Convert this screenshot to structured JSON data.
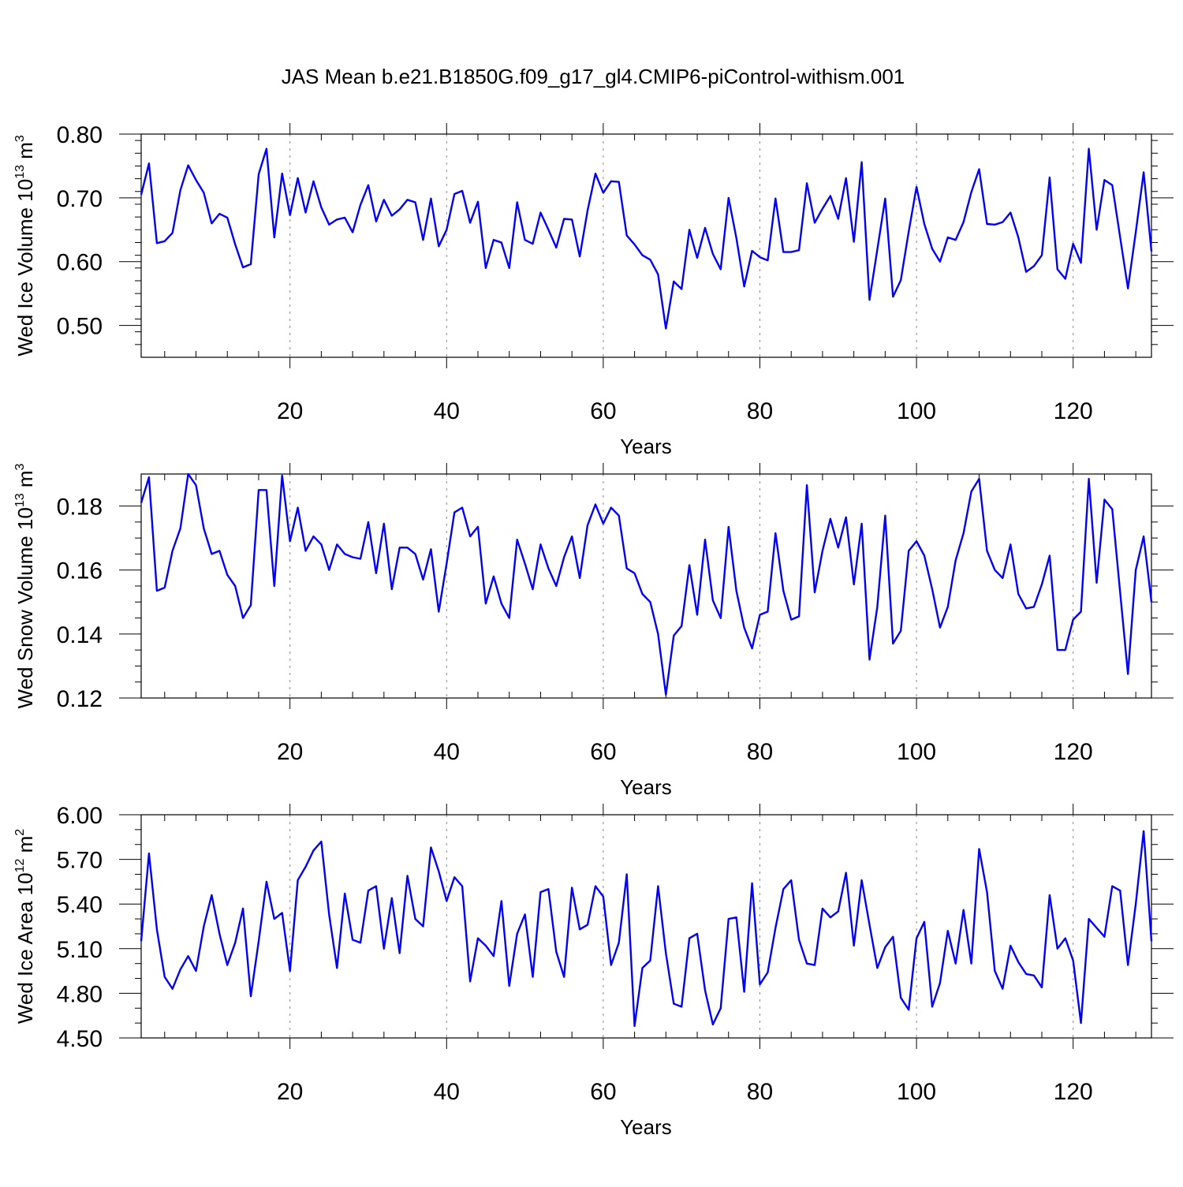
{
  "title": "JAS Mean b.e21.B1850G.f09_g17_gl4.CMIP6-piControl-withism.001",
  "colors": {
    "line": "#0000ff",
    "axes": "#000000",
    "grid": "#888888"
  },
  "chart_data": [
    {
      "type": "line",
      "ylabel": "Wed Ice Volume 10",
      "ylabel_exp": "13",
      "ylabel_unit": " m",
      "ylabel_unit_exp": "3",
      "xlabel": "Years",
      "xlim": [
        1,
        130
      ],
      "ylim": [
        0.45,
        0.8
      ],
      "yticks": [
        0.5,
        0.6,
        0.7,
        0.8
      ],
      "ytick_labels": [
        "0.50",
        "0.60",
        "0.70",
        "0.80"
      ],
      "yminor_step": 0.02,
      "xticks": [
        20,
        40,
        60,
        80,
        100,
        120
      ],
      "xtick_labels": [
        "20",
        "40",
        "60",
        "80",
        "100",
        "120"
      ],
      "xminor_step": 4,
      "grid": "dashed vertical at major x ticks",
      "series": [
        {
          "values": [
            0.705,
            0.754,
            0.629,
            0.632,
            0.645,
            0.712,
            0.751,
            0.728,
            0.708,
            0.66,
            0.675,
            0.669,
            0.627,
            0.591,
            0.596,
            0.737,
            0.777,
            0.638,
            0.738,
            0.673,
            0.731,
            0.677,
            0.726,
            0.685,
            0.658,
            0.666,
            0.669,
            0.646,
            0.689,
            0.72,
            0.663,
            0.697,
            0.672,
            0.682,
            0.697,
            0.693,
            0.634,
            0.699,
            0.624,
            0.65,
            0.706,
            0.711,
            0.661,
            0.694,
            0.59,
            0.634,
            0.63,
            0.59,
            0.693,
            0.634,
            0.628,
            0.677,
            0.65,
            0.622,
            0.667,
            0.666,
            0.608,
            0.68,
            0.738,
            0.708,
            0.726,
            0.725,
            0.641,
            0.627,
            0.61,
            0.603,
            0.58,
            0.495,
            0.569,
            0.557,
            0.65,
            0.606,
            0.653,
            0.612,
            0.588,
            0.7,
            0.637,
            0.561,
            0.617,
            0.607,
            0.602,
            0.699,
            0.615,
            0.615,
            0.618,
            0.723,
            0.661,
            0.683,
            0.703,
            0.667,
            0.731,
            0.631,
            0.756,
            0.54,
            0.619,
            0.699,
            0.545,
            0.571,
            0.647,
            0.717,
            0.659,
            0.62,
            0.6,
            0.638,
            0.634,
            0.662,
            0.709,
            0.745,
            0.659,
            0.658,
            0.662,
            0.677,
            0.638,
            0.584,
            0.593,
            0.61,
            0.732,
            0.588,
            0.573,
            0.628,
            0.598,
            0.777,
            0.65,
            0.728,
            0.72,
            0.638,
            0.558,
            0.646,
            0.74,
            0.616
          ]
        }
      ]
    },
    {
      "type": "line",
      "ylabel": "Wed Snow Volume 10",
      "ylabel_exp": "13",
      "ylabel_unit": " m",
      "ylabel_unit_exp": "3",
      "xlabel": "Years",
      "xlim": [
        1,
        130
      ],
      "ylim": [
        0.12,
        0.19
      ],
      "yticks": [
        0.12,
        0.14,
        0.16,
        0.18
      ],
      "ytick_labels": [
        "0.12",
        "0.14",
        "0.16",
        "0.18"
      ],
      "yminor_step": 0.005,
      "xticks": [
        20,
        40,
        60,
        80,
        100,
        120
      ],
      "xtick_labels": [
        "20",
        "40",
        "60",
        "80",
        "100",
        "120"
      ],
      "xminor_step": 4,
      "grid": "dashed vertical at major x ticks",
      "series": [
        {
          "values": [
            0.181,
            0.189,
            0.1535,
            0.1545,
            0.166,
            0.173,
            0.19,
            0.1865,
            0.173,
            0.165,
            0.166,
            0.1585,
            0.155,
            0.145,
            0.149,
            0.185,
            0.185,
            0.155,
            0.1895,
            0.169,
            0.1795,
            0.166,
            0.1705,
            0.168,
            0.16,
            0.168,
            0.165,
            0.164,
            0.1635,
            0.175,
            0.159,
            0.1745,
            0.154,
            0.167,
            0.167,
            0.165,
            0.157,
            0.1665,
            0.147,
            0.162,
            0.178,
            0.1795,
            0.1705,
            0.1735,
            0.1495,
            0.158,
            0.1495,
            0.145,
            0.1695,
            0.162,
            0.154,
            0.168,
            0.1605,
            0.155,
            0.164,
            0.1705,
            0.1575,
            0.174,
            0.1805,
            0.1745,
            0.1795,
            0.177,
            0.1605,
            0.159,
            0.1525,
            0.15,
            0.14,
            0.121,
            0.1395,
            0.1425,
            0.1615,
            0.146,
            0.1695,
            0.1505,
            0.145,
            0.1735,
            0.1535,
            0.142,
            0.1355,
            0.146,
            0.147,
            0.1715,
            0.1535,
            0.1445,
            0.1455,
            0.1865,
            0.153,
            0.166,
            0.176,
            0.167,
            0.1765,
            0.1555,
            0.1745,
            0.132,
            0.1485,
            0.177,
            0.137,
            0.141,
            0.166,
            0.169,
            0.1645,
            0.154,
            0.142,
            0.1485,
            0.163,
            0.1715,
            0.1845,
            0.1885,
            0.166,
            0.16,
            0.1575,
            0.168,
            0.1525,
            0.148,
            0.1485,
            0.1555,
            0.1645,
            0.135,
            0.135,
            0.1445,
            0.147,
            0.1885,
            0.156,
            0.182,
            0.179,
            0.153,
            0.1275,
            0.16,
            0.1705,
            0.15
          ]
        }
      ]
    },
    {
      "type": "line",
      "ylabel": "Wed Ice Area 10",
      "ylabel_exp": "12",
      "ylabel_unit": " m",
      "ylabel_unit_exp": "2",
      "xlabel": "Years",
      "xlim": [
        1,
        130
      ],
      "ylim": [
        4.5,
        6.0
      ],
      "yticks": [
        4.5,
        4.8,
        5.1,
        5.4,
        5.7,
        6.0
      ],
      "ytick_labels": [
        "4.50",
        "4.80",
        "5.10",
        "5.40",
        "5.70",
        "6.00"
      ],
      "yminor_step": 0.1,
      "xticks": [
        20,
        40,
        60,
        80,
        100,
        120
      ],
      "xtick_labels": [
        "20",
        "40",
        "60",
        "80",
        "100",
        "120"
      ],
      "xminor_step": 4,
      "grid": "dashed vertical at major x ticks",
      "series": [
        {
          "values": [
            5.15,
            5.74,
            5.23,
            4.91,
            4.83,
            4.96,
            5.05,
            4.95,
            5.25,
            5.46,
            5.2,
            4.99,
            5.14,
            5.37,
            4.78,
            5.15,
            5.55,
            5.3,
            5.34,
            4.95,
            5.56,
            5.65,
            5.76,
            5.82,
            5.33,
            4.97,
            5.47,
            5.16,
            5.14,
            5.49,
            5.52,
            5.1,
            5.44,
            5.07,
            5.59,
            5.3,
            5.25,
            5.78,
            5.62,
            5.42,
            5.58,
            5.52,
            4.88,
            5.17,
            5.12,
            5.05,
            5.42,
            4.85,
            5.2,
            5.33,
            4.91,
            5.48,
            5.5,
            5.08,
            4.91,
            5.51,
            5.23,
            5.26,
            5.52,
            5.45,
            4.99,
            5.14,
            5.6,
            4.58,
            4.97,
            5.02,
            5.52,
            5.07,
            4.73,
            4.71,
            5.17,
            5.2,
            4.82,
            4.59,
            4.7,
            5.3,
            5.31,
            4.81,
            5.54,
            4.86,
            4.94,
            5.24,
            5.5,
            5.56,
            5.16,
            5.0,
            4.99,
            5.37,
            5.31,
            5.35,
            5.61,
            5.12,
            5.56,
            5.26,
            4.97,
            5.11,
            5.18,
            4.77,
            4.69,
            5.17,
            5.28,
            4.71,
            4.87,
            5.22,
            5.0,
            5.36,
            5.0,
            5.77,
            5.48,
            4.95,
            4.83,
            5.12,
            5.01,
            4.93,
            4.92,
            4.84,
            5.46,
            5.1,
            5.17,
            5.02,
            4.6,
            5.3,
            5.24,
            5.18,
            5.52,
            5.49,
            4.99,
            5.4,
            5.89,
            5.15
          ]
        }
      ]
    }
  ]
}
